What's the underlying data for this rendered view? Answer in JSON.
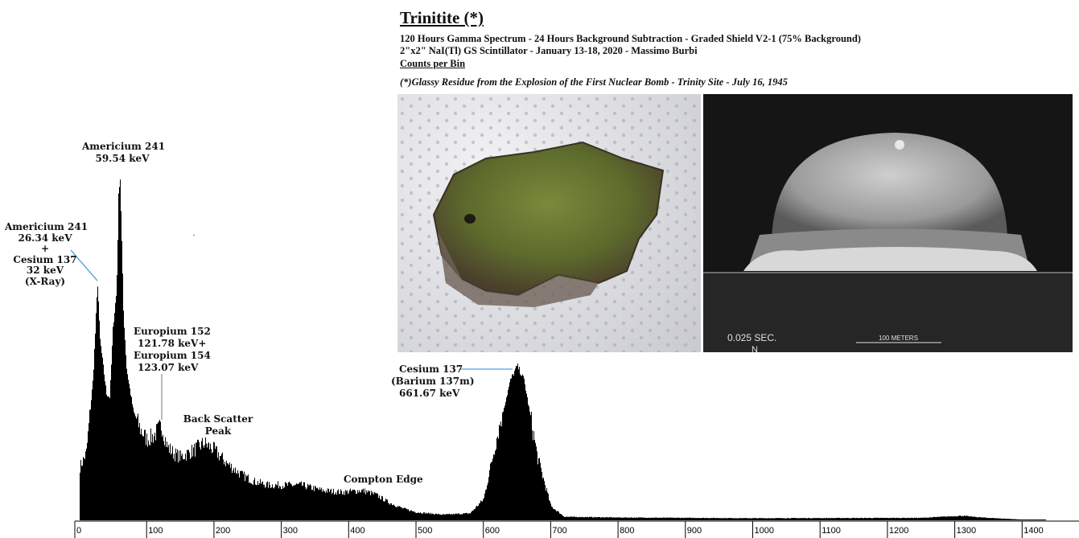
{
  "header": {
    "title": "Trinitite (*)",
    "line1": "120 Hours Gamma Spectrum - 24 Hours Background Subtraction - Graded Shield V2-1 (75% Background)",
    "line2": "2\"x2\" NaI(Tl) GS Scintillator - January 13-18, 2020 - Massimo Burbi",
    "ylabel_link": "Counts per Bin",
    "footnote": "(*)Glassy Residue from the Explosion of the First Nuclear Bomb - Trinity Site - July 16, 1945"
  },
  "photos": {
    "left": {
      "subject": "trinitite-sample-on-paper-towel"
    },
    "right": {
      "subject": "trinity-fireball",
      "time_caption": "0.025 SEC.",
      "north_caption": "N",
      "scale_caption": "100 METERS"
    }
  },
  "annotations": {
    "am241_59": [
      "Americium 241",
      "59.54 keV"
    ],
    "am241_26": [
      "Americium 241",
      "26.34 keV",
      "+",
      "Cesium 137",
      "32 keV",
      "(X-Ray)"
    ],
    "eu": [
      "Europium 152",
      "121.78 keV+",
      "Europium 154",
      "123.07 keV"
    ],
    "backscatter": [
      "Back Scatter",
      "Peak"
    ],
    "cs137": [
      "Cesium 137",
      "(Barium 137m)",
      "661.67 keV"
    ],
    "compton": "Compton Edge"
  },
  "colors": {
    "spectrum": "#000000",
    "leader_line": "#1a8fd8",
    "text": "#111111"
  },
  "chart_data": {
    "type": "bar",
    "title": "Trinitite (*)",
    "xlabel": "",
    "ylabel": "Counts per Bin",
    "x_unit": "keV",
    "xlim": [
      0,
      1450
    ],
    "x_ticks": [
      "0",
      "100",
      "200",
      "300",
      "400",
      "500",
      "600",
      "700",
      "800",
      "900",
      "1000",
      "1100",
      "1200",
      "1300",
      "1400"
    ],
    "y_scale": "relative (peak = 100)",
    "grid": false,
    "spectrum_keV_relative": [
      [
        0,
        15
      ],
      [
        10,
        19
      ],
      [
        20,
        40
      ],
      [
        27,
        68
      ],
      [
        30,
        52
      ],
      [
        40,
        36
      ],
      [
        45,
        35
      ],
      [
        50,
        56
      ],
      [
        55,
        65
      ],
      [
        58,
        92
      ],
      [
        60,
        100
      ],
      [
        62,
        85
      ],
      [
        65,
        60
      ],
      [
        70,
        43
      ],
      [
        80,
        31
      ],
      [
        90,
        26
      ],
      [
        100,
        23
      ],
      [
        110,
        24
      ],
      [
        122,
        27
      ],
      [
        130,
        21
      ],
      [
        140,
        19
      ],
      [
        150,
        18
      ],
      [
        160,
        19
      ],
      [
        170,
        20
      ],
      [
        185,
        22
      ],
      [
        200,
        20
      ],
      [
        210,
        18
      ],
      [
        220,
        16
      ],
      [
        240,
        13
      ],
      [
        260,
        11
      ],
      [
        280,
        10
      ],
      [
        300,
        10
      ],
      [
        330,
        10
      ],
      [
        360,
        8.5
      ],
      [
        390,
        8
      ],
      [
        420,
        8.5
      ],
      [
        440,
        7.3
      ],
      [
        460,
        5
      ],
      [
        480,
        3.4
      ],
      [
        500,
        2.3
      ],
      [
        540,
        1.6
      ],
      [
        580,
        2
      ],
      [
        600,
        6
      ],
      [
        620,
        24
      ],
      [
        640,
        40
      ],
      [
        650,
        44
      ],
      [
        660,
        40
      ],
      [
        680,
        18
      ],
      [
        700,
        4
      ],
      [
        720,
        1
      ],
      [
        800,
        0.8
      ],
      [
        1000,
        0.6
      ],
      [
        1250,
        0.7
      ],
      [
        1310,
        1.3
      ],
      [
        1340,
        0.8
      ],
      [
        1400,
        0.2
      ],
      [
        1440,
        0
      ]
    ],
    "peaks": [
      {
        "label": "Americium 241 26.34 keV + Cesium 137 32 keV (X-Ray)",
        "energy_keV": 27
      },
      {
        "label": "Americium 241 59.54 keV",
        "energy_keV": 59.54
      },
      {
        "label": "Europium 152 121.78 keV + Europium 154 123.07 keV",
        "energy_keV": 122
      },
      {
        "label": "Back Scatter Peak",
        "energy_keV": 185
      },
      {
        "label": "Compton Edge",
        "energy_keV": 440
      },
      {
        "label": "Cesium 137 (Barium 137m) 661.67 keV",
        "energy_keV": 661.67
      }
    ]
  }
}
